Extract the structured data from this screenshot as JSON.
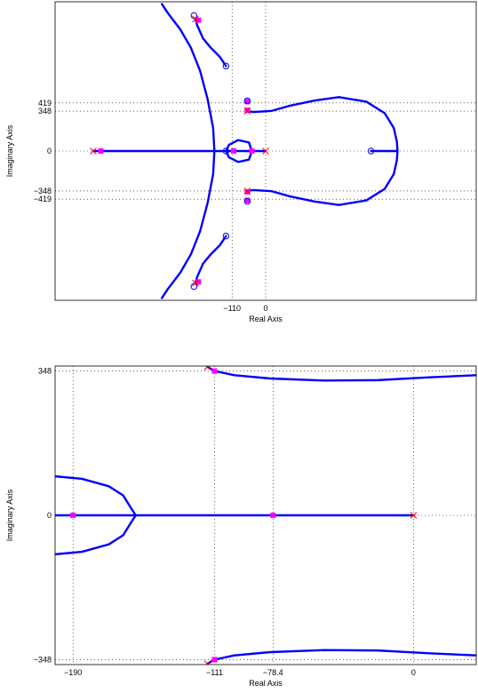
{
  "chart_data": [
    {
      "type": "root-locus",
      "xlabel": "Real Axis",
      "ylabel": "Imaginary Axis",
      "x_ticks": [
        -110,
        0
      ],
      "y_ticks": [
        -419,
        -348,
        0,
        348,
        419
      ],
      "xlim": [
        -690,
        690
      ],
      "ylim": [
        -1300,
        1300
      ],
      "grid": "dotted at tick values",
      "colors": {
        "locus": "#0000ff",
        "pole": "#ff0000",
        "zero": "#0000ff",
        "marker": "#ff00ff"
      },
      "poles": [
        [
          -565,
          0
        ],
        [
          0,
          0
        ],
        [
          -60,
          348
        ],
        [
          -60,
          -348
        ],
        [
          -230,
          1150
        ],
        [
          -230,
          -1150
        ]
      ],
      "zeros": [
        [
          345,
          0
        ],
        [
          -130,
          0
        ],
        [
          -60,
          438
        ],
        [
          -60,
          -438
        ],
        [
          -130,
          740
        ],
        [
          -130,
          -740
        ],
        [
          -235,
          1180
        ],
        [
          -235,
          -1180
        ]
      ],
      "markers": [
        [
          -540,
          0
        ],
        [
          -105,
          0
        ],
        [
          -45,
          0
        ],
        [
          -60,
          355
        ],
        [
          -60,
          -355
        ],
        [
          -60,
          430
        ],
        [
          -60,
          -430
        ],
        [
          -220,
          1140
        ],
        [
          -220,
          -1140
        ]
      ],
      "branches": [
        [
          [
            -340,
            1280
          ],
          [
            -320,
            1200
          ],
          [
            -280,
            1060
          ],
          [
            -245,
            900
          ],
          [
            -215,
            700
          ],
          [
            -190,
            450
          ],
          [
            -172,
            200
          ],
          [
            -168,
            0
          ],
          [
            -172,
            -200
          ],
          [
            -190,
            -450
          ],
          [
            -215,
            -700
          ],
          [
            -245,
            -900
          ],
          [
            -280,
            -1060
          ],
          [
            -320,
            -1200
          ],
          [
            -340,
            -1280
          ]
        ],
        [
          [
            -565,
            0
          ],
          [
            -168,
            0
          ]
        ],
        [
          [
            -168,
            0
          ],
          [
            -60,
            0
          ]
        ],
        [
          [
            -130,
            0
          ],
          [
            -120,
            55
          ],
          [
            -90,
            95
          ],
          [
            -55,
            75
          ],
          [
            -45,
            0
          ],
          [
            -55,
            -75
          ],
          [
            -90,
            -95
          ],
          [
            -120,
            -55
          ],
          [
            -130,
            0
          ]
        ],
        [
          [
            -60,
            0
          ],
          [
            0,
            0
          ]
        ],
        [
          [
            -60,
            348
          ],
          [
            -40,
            340
          ],
          [
            20,
            350
          ],
          [
            80,
            395
          ],
          [
            160,
            440
          ],
          [
            240,
            470
          ],
          [
            330,
            430
          ],
          [
            390,
            330
          ],
          [
            420,
            200
          ],
          [
            430,
            80
          ],
          [
            432,
            0
          ],
          [
            430,
            -80
          ],
          [
            420,
            -200
          ],
          [
            390,
            -330
          ],
          [
            330,
            -430
          ],
          [
            240,
            -470
          ],
          [
            160,
            -440
          ],
          [
            80,
            -395
          ],
          [
            20,
            -350
          ],
          [
            -40,
            -340
          ],
          [
            -60,
            -348
          ]
        ],
        [
          [
            345,
            0
          ],
          [
            432,
            0
          ]
        ],
        [
          [
            -230,
            1150
          ],
          [
            -225,
            1100
          ],
          [
            -205,
            980
          ],
          [
            -180,
            900
          ],
          [
            -150,
            820
          ],
          [
            -130,
            740
          ]
        ],
        [
          [
            -230,
            -1150
          ],
          [
            -225,
            -1100
          ],
          [
            -205,
            -980
          ],
          [
            -180,
            -900
          ],
          [
            -150,
            -820
          ],
          [
            -130,
            -740
          ]
        ]
      ]
    },
    {
      "type": "root-locus",
      "xlabel": "Real Axis",
      "ylabel": "Imaginary Axis",
      "x_ticks": [
        -190,
        -111,
        -78.4,
        0
      ],
      "y_ticks": [
        -348,
        0,
        348
      ],
      "xlim": [
        -200,
        35
      ],
      "ylim": [
        -360,
        360
      ],
      "grid": "dotted at tick values",
      "colors": {
        "locus": "#0000ff",
        "pole": "#ff0000",
        "zero": "#0000ff",
        "marker": "#ff00ff"
      },
      "poles": [
        [
          0,
          0
        ],
        [
          -115,
          358
        ],
        [
          -115,
          -358
        ]
      ],
      "zeros": [],
      "markers": [
        [
          -190,
          0
        ],
        [
          -78.4,
          0
        ],
        [
          -111,
          348
        ],
        [
          -111,
          -348
        ]
      ],
      "branches": [
        [
          [
            -200,
            94
          ],
          [
            -185,
            88
          ],
          [
            -170,
            70
          ],
          [
            -162,
            48
          ],
          [
            -158,
            20
          ],
          [
            -155,
            0
          ],
          [
            -158,
            -20
          ],
          [
            -162,
            -48
          ],
          [
            -170,
            -70
          ],
          [
            -185,
            -88
          ],
          [
            -200,
            -94
          ]
        ],
        [
          [
            -200,
            0
          ],
          [
            0,
            0
          ]
        ],
        [
          [
            -115,
            358
          ],
          [
            -111,
            348
          ],
          [
            -100,
            338
          ],
          [
            -80,
            330
          ],
          [
            -50,
            325
          ],
          [
            -20,
            326
          ],
          [
            10,
            333
          ],
          [
            35,
            338
          ]
        ],
        [
          [
            -115,
            -358
          ],
          [
            -111,
            -348
          ],
          [
            -100,
            -338
          ],
          [
            -80,
            -330
          ],
          [
            -50,
            -325
          ],
          [
            -20,
            -326
          ],
          [
            10,
            -333
          ],
          [
            35,
            -338
          ]
        ]
      ]
    }
  ]
}
